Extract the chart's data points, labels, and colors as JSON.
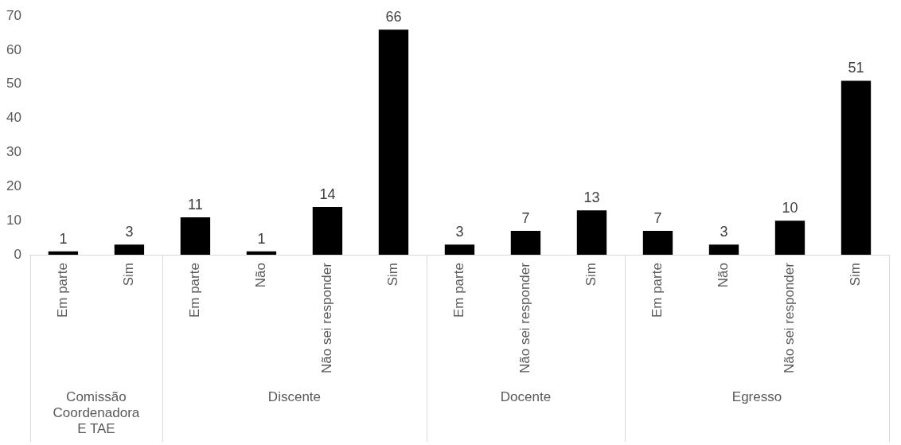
{
  "chart_data": {
    "type": "bar",
    "categories": [
      "Em parte",
      "Sim",
      "Em parte",
      "Não",
      "Não sei responder",
      "Sim",
      "Em parte",
      "Não sei responder",
      "Sim",
      "Em parte",
      "Não",
      "Não sei responder",
      "Sim"
    ],
    "values": [
      1,
      3,
      11,
      1,
      14,
      66,
      3,
      7,
      13,
      7,
      3,
      10,
      51
    ],
    "color": "#000000",
    "ylim": [
      0,
      70
    ],
    "yticks": [
      0,
      10,
      20,
      30,
      40,
      50,
      60,
      70
    ],
    "grid": false,
    "legend": false,
    "data_labels": true,
    "annotations": [
      "Comissão Coordenadora E TAE",
      "Discente",
      "Docente",
      "Egresso"
    ]
  }
}
